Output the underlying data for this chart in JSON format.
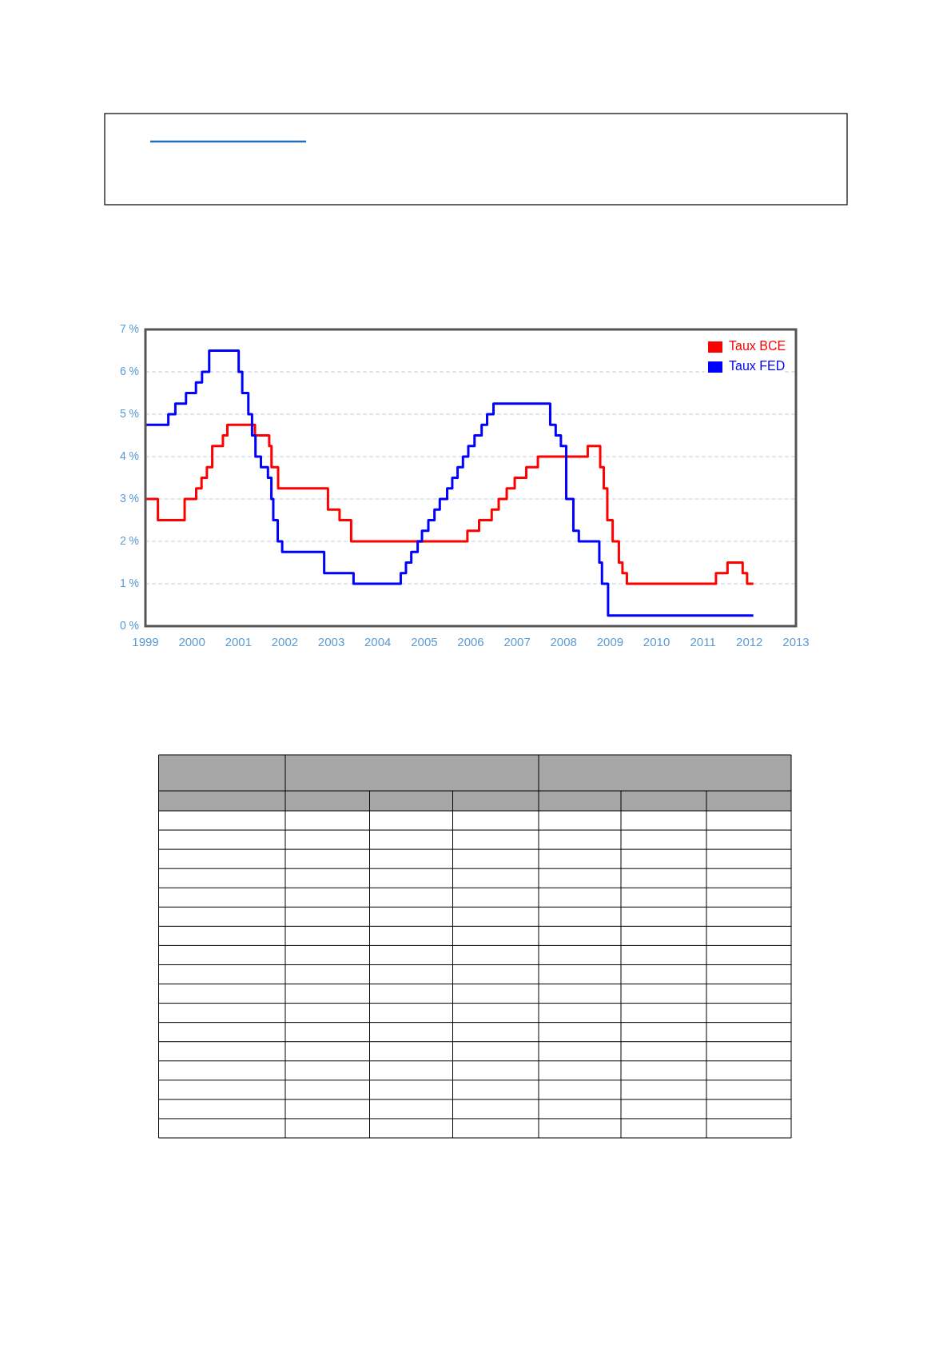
{
  "chart_data": {
    "type": "step",
    "series": [
      {
        "name": "Taux BCE",
        "color": "#ff0000",
        "x": [
          "1999-01-01",
          "1999-04-09",
          "1999-11-05",
          "2000-02-04",
          "2000-03-17",
          "2000-04-28",
          "2000-06-09",
          "2000-09-01",
          "2000-10-06",
          "2001-05-11",
          "2001-08-31",
          "2001-09-18",
          "2001-11-09",
          "2002-12-06",
          "2003-03-07",
          "2003-06-06",
          "2005-12-06",
          "2006-03-08",
          "2006-06-15",
          "2006-08-09",
          "2006-10-11",
          "2006-12-13",
          "2007-03-14",
          "2007-06-13",
          "2008-07-09",
          "2008-10-15",
          "2008-11-12",
          "2008-12-10",
          "2009-01-21",
          "2009-03-11",
          "2009-04-08",
          "2009-05-13",
          "2011-04-13",
          "2011-07-13",
          "2011-11-09",
          "2011-12-14",
          "2012-02-01"
        ],
        "values": [
          3,
          2.5,
          3,
          3.25,
          3.5,
          3.75,
          4.25,
          4.5,
          4.75,
          4.5,
          4.25,
          3.75,
          3.25,
          2.75,
          2.5,
          2,
          2.25,
          2.5,
          2.75,
          3,
          3.25,
          3.5,
          3.75,
          4,
          4.25,
          3.75,
          3.25,
          2.5,
          2,
          1.5,
          1.25,
          1,
          1.25,
          1.5,
          1.25,
          1,
          1
        ]
      },
      {
        "name": "Taux FED",
        "color": "#0000ff",
        "x": [
          "1999-01-01",
          "1999-06-30",
          "1999-08-24",
          "1999-11-16",
          "2000-02-02",
          "2000-03-21",
          "2000-05-16",
          "2001-01-03",
          "2001-01-31",
          "2001-03-20",
          "2001-04-18",
          "2001-05-15",
          "2001-06-27",
          "2001-08-21",
          "2001-09-17",
          "2001-10-02",
          "2001-11-06",
          "2001-12-11",
          "2002-11-06",
          "2003-06-25",
          "2004-06-30",
          "2004-08-10",
          "2004-09-21",
          "2004-11-10",
          "2004-12-14",
          "2005-02-02",
          "2005-03-22",
          "2005-05-03",
          "2005-06-30",
          "2005-08-09",
          "2005-09-20",
          "2005-11-01",
          "2005-12-13",
          "2006-01-31",
          "2006-03-28",
          "2006-05-10",
          "2006-06-29",
          "2007-09-18",
          "2007-10-31",
          "2007-12-11",
          "2008-01-22",
          "2008-03-18",
          "2008-04-30",
          "2008-10-08",
          "2008-10-29",
          "2008-12-16",
          "2012-02-01"
        ],
        "values": [
          4.75,
          5,
          5.25,
          5.5,
          5.75,
          6,
          6.5,
          6,
          5.5,
          5,
          4.5,
          4,
          3.75,
          3.5,
          3,
          2.5,
          2,
          1.75,
          1.25,
          1,
          1.25,
          1.5,
          1.75,
          2,
          2.25,
          2.5,
          2.75,
          3,
          3.25,
          3.5,
          3.75,
          4,
          4.25,
          4.5,
          4.75,
          5,
          5.25,
          4.75,
          4.5,
          4.25,
          3,
          2.25,
          2,
          1.5,
          1,
          0.25,
          0.25
        ]
      }
    ],
    "xlim": [
      "1999",
      "2013"
    ],
    "xticks": [
      "1999",
      "2000",
      "2001",
      "2002",
      "2003",
      "2004",
      "2005",
      "2006",
      "2007",
      "2008",
      "2009",
      "2010",
      "2011",
      "2012",
      "2013"
    ],
    "ylim": [
      0,
      7
    ],
    "yticks": [
      {
        "value": 0,
        "label": "0 %"
      },
      {
        "value": 1,
        "label": "1 %"
      },
      {
        "value": 2,
        "label": "2 %"
      },
      {
        "value": 3,
        "label": "3 %"
      },
      {
        "value": 4,
        "label": "4 %"
      },
      {
        "value": 5,
        "label": "5 %"
      },
      {
        "value": 6,
        "label": "6 %"
      },
      {
        "value": 7,
        "label": "7 %"
      }
    ],
    "grid": "y",
    "legend": "top right",
    "line_style": "solid"
  }
}
